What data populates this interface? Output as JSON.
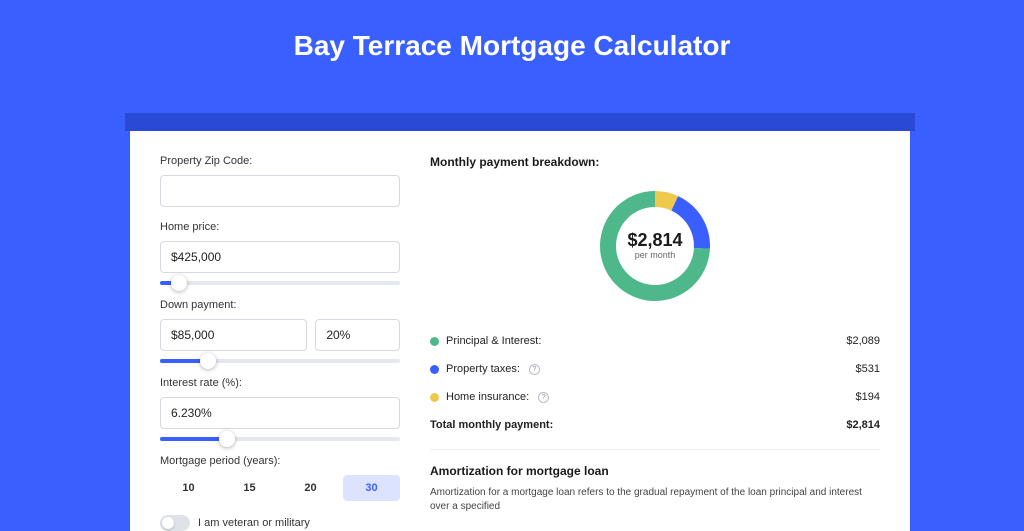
{
  "title": "Bay Terrace Mortgage Calculator",
  "colors": {
    "page_bg": "#3a5fff",
    "card_bg": "#ffffff",
    "shadow": "#2a4ad5"
  },
  "inputs": {
    "zip_label": "Property Zip Code:",
    "zip_value": "",
    "home_price_label": "Home price:",
    "home_price_value": "$425,000",
    "home_price_slider_pct": 8,
    "down_payment_label": "Down payment:",
    "down_payment_value": "$85,000",
    "down_payment_pct": "20%",
    "down_payment_slider_pct": 20,
    "interest_label": "Interest rate (%):",
    "interest_value": "6.230%",
    "interest_slider_pct": 28,
    "period_label": "Mortgage period (years):",
    "period_options": [
      "10",
      "15",
      "20",
      "30"
    ],
    "period_selected": "30",
    "veteran_label": "I am veteran or military",
    "veteran_on": false
  },
  "breakdown": {
    "title": "Monthly payment breakdown:",
    "donut": {
      "center_value": "$2,814",
      "center_sub": "per month",
      "slices": [
        {
          "label": "Principal & Interest",
          "value": 2089,
          "display": "$2,089",
          "color": "#4eb88b",
          "pct": 74.2
        },
        {
          "label": "Property taxes",
          "value": 531,
          "display": "$531",
          "color": "#3a5fff",
          "pct": 18.9
        },
        {
          "label": "Home insurance",
          "value": 194,
          "display": "$194",
          "color": "#efc94c",
          "pct": 6.9
        }
      ],
      "radius": 55,
      "thickness": 16,
      "bg": "#ffffff"
    },
    "rows": [
      {
        "label": "Principal & Interest:",
        "value": "$2,089",
        "color": "#4eb88b",
        "info": false
      },
      {
        "label": "Property taxes:",
        "value": "$531",
        "color": "#3a5fff",
        "info": true
      },
      {
        "label": "Home insurance:",
        "value": "$194",
        "color": "#efc94c",
        "info": true
      }
    ],
    "total_label": "Total monthly payment:",
    "total_value": "$2,814"
  },
  "amortization": {
    "title": "Amortization for mortgage loan",
    "text": "Amortization for a mortgage loan refers to the gradual repayment of the loan principal and interest over a specified"
  }
}
